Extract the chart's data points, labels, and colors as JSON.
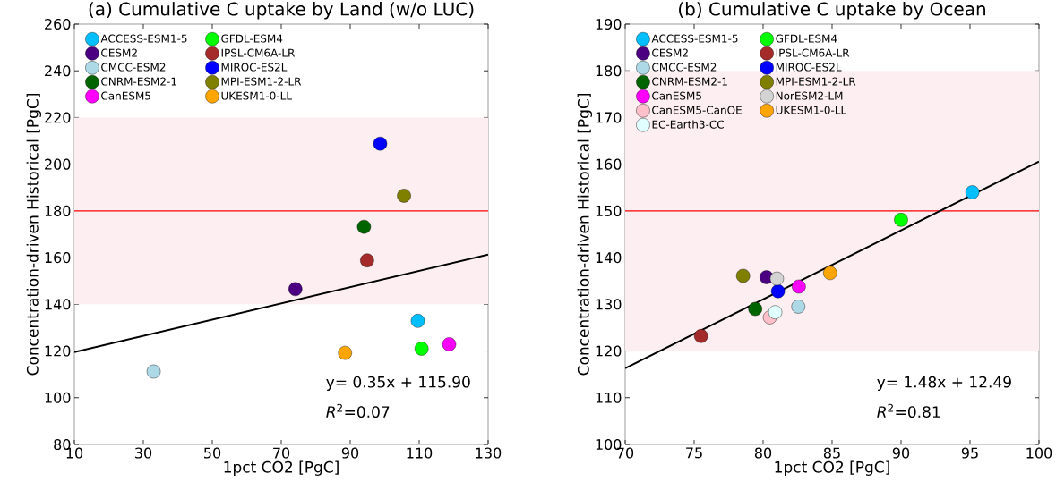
{
  "chart_data": [
    {
      "type": "scatter",
      "title": "(a) Cumulative C uptake by Land (w/o LUC)",
      "xlabel": "1pct CO2 [PgC]",
      "ylabel": "Concentration-driven Historical [PgC]",
      "xlim": [
        10,
        130
      ],
      "ylim": [
        80,
        260
      ],
      "xticks": [
        10,
        30,
        50,
        70,
        90,
        110,
        130
      ],
      "yticks": [
        80,
        100,
        120,
        140,
        160,
        180,
        200,
        220,
        240,
        260
      ],
      "legend": "top left",
      "marker": "circle",
      "grid": false,
      "series": [
        {
          "name": "ACCESS-ESM1-5",
          "color": "#00bfff",
          "x": [
            109.6
          ],
          "values": [
            132.9
          ]
        },
        {
          "name": "CESM2",
          "color": "#4b0082",
          "x": [
            74.1
          ],
          "values": [
            146.5
          ]
        },
        {
          "name": "CMCC-ESM2",
          "color": "#add8e6",
          "x": [
            33.0
          ],
          "values": [
            111.2
          ]
        },
        {
          "name": "CNRM-ESM2-1",
          "color": "#006400",
          "x": [
            94.0
          ],
          "values": [
            173.2
          ]
        },
        {
          "name": "CanESM5",
          "color": "#ff00ff",
          "x": [
            118.7
          ],
          "values": [
            122.9
          ]
        },
        {
          "name": "GFDL-ESM4",
          "color": "#00ff00",
          "x": [
            110.7
          ],
          "values": [
            121.0
          ]
        },
        {
          "name": "IPSL-CM6A-LR",
          "color": "#a52a2a",
          "x": [
            94.9
          ],
          "values": [
            158.8
          ]
        },
        {
          "name": "MIROC-ES2L",
          "color": "#0000ff",
          "x": [
            98.7
          ],
          "values": [
            208.8
          ]
        },
        {
          "name": "MPI-ESM1-2-LR",
          "color": "#808000",
          "x": [
            105.6
          ],
          "values": [
            186.5
          ]
        },
        {
          "name": "UKESM1-0-LL",
          "color": "#ffa500",
          "x": [
            88.5
          ],
          "values": [
            119.2
          ]
        },
        {
          "type": "line",
          "color": "#000000",
          "marker": "none",
          "x": [
            10,
            130
          ],
          "values": [
            119.5,
            161.3
          ]
        }
      ],
      "bands": [
        {
          "axis": "y",
          "from": 140,
          "to": 220,
          "color": "#fdeff1"
        }
      ],
      "ref_lines": [
        {
          "axis": "y",
          "value": 180,
          "color": "#ff0000"
        }
      ],
      "annotations": [
        "y=    0.35x +   115.90",
        "*R*$^{2}$=0.07"
      ]
    },
    {
      "type": "scatter",
      "title": "(b) Cumulative C uptake by Ocean",
      "xlabel": "1pct CO2 [PgC]",
      "ylabel": "Concentration-driven Historical [PgC]",
      "xlim": [
        70,
        100
      ],
      "ylim": [
        100,
        190
      ],
      "xticks": [
        70,
        75,
        80,
        85,
        90,
        95,
        100
      ],
      "yticks": [
        100,
        110,
        120,
        130,
        140,
        150,
        160,
        170,
        180,
        190
      ],
      "legend": "top left",
      "marker": "circle",
      "grid": false,
      "series": [
        {
          "name": "ACCESS-ESM1-5",
          "color": "#00bfff",
          "x": [
            95.17
          ],
          "values": [
            154.0
          ]
        },
        {
          "name": "CESM2",
          "color": "#4b0082",
          "x": [
            80.25
          ],
          "values": [
            135.8
          ]
        },
        {
          "name": "CMCC-ESM2",
          "color": "#add8e6",
          "x": [
            82.55
          ],
          "values": [
            129.5
          ]
        },
        {
          "name": "CNRM-ESM2-1",
          "color": "#006400",
          "x": [
            79.43
          ],
          "values": [
            129.0
          ]
        },
        {
          "name": "CanESM5",
          "color": "#ff00ff",
          "x": [
            82.59
          ],
          "values": [
            133.8
          ]
        },
        {
          "name": "CanESM5-CanOE",
          "color": "#ffc0cb",
          "x": [
            80.49
          ],
          "values": [
            127.2
          ]
        },
        {
          "name": "EC-Earth3-CC",
          "color": "#e0ffff",
          "x": [
            80.88
          ],
          "values": [
            128.3
          ]
        },
        {
          "name": "GFDL-ESM4",
          "color": "#00ff00",
          "x": [
            90.0
          ],
          "values": [
            148.1
          ]
        },
        {
          "name": "IPSL-CM6A-LR",
          "color": "#a52a2a",
          "x": [
            75.5
          ],
          "values": [
            123.2
          ]
        },
        {
          "name": "MIROC-ES2L",
          "color": "#0000ff",
          "x": [
            81.08
          ],
          "values": [
            132.8
          ]
        },
        {
          "name": "MPI-ESM1-2-LR",
          "color": "#808000",
          "x": [
            78.55
          ],
          "values": [
            136.1
          ]
        },
        {
          "name": "NorESM2-LM",
          "color": "#d3d3d3",
          "x": [
            81.0
          ],
          "values": [
            135.5
          ]
        },
        {
          "name": "UKESM1-0-LL",
          "color": "#ffa500",
          "x": [
            84.86
          ],
          "values": [
            136.7
          ]
        },
        {
          "type": "line",
          "color": "#000000",
          "marker": "none",
          "x": [
            70,
            100
          ],
          "values": [
            116.3,
            160.6
          ]
        }
      ],
      "bands": [
        {
          "axis": "y",
          "from": 120,
          "to": 180,
          "color": "#fdeff1"
        }
      ],
      "ref_lines": [
        {
          "axis": "y",
          "value": 150,
          "color": "#ff0000"
        }
      ],
      "annotations": [
        "y=    1.48x +    12.49",
        "*R*$^{2}$=0.81"
      ]
    }
  ]
}
